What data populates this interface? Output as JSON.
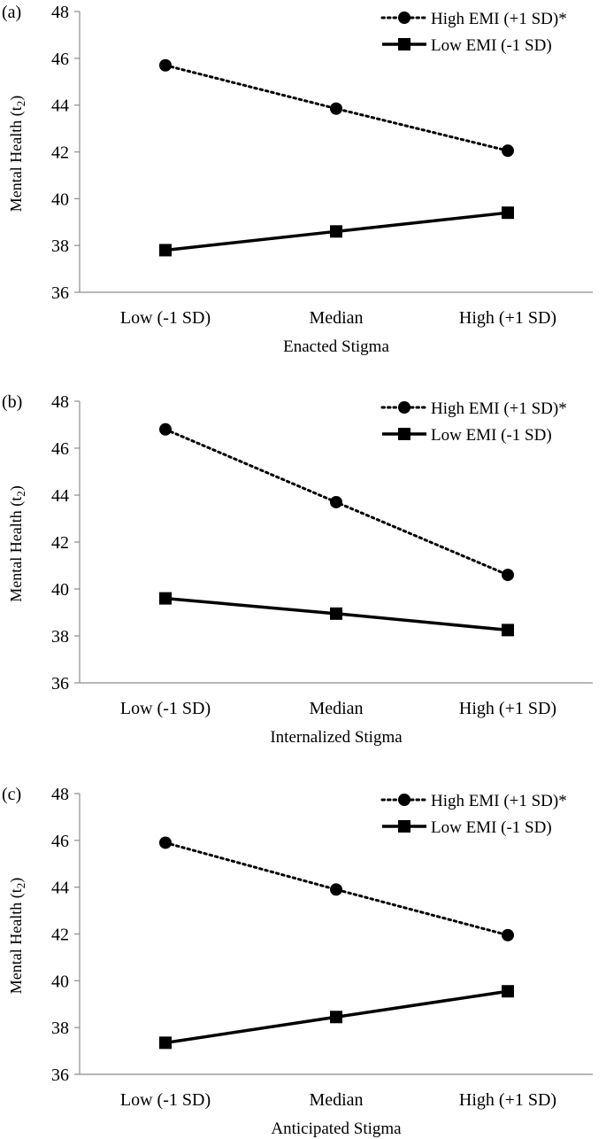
{
  "chart_data": [
    {
      "type": "line",
      "panel_label": "(a)",
      "xlabel": "Enacted Stigma",
      "ylabel": "Mental Health (t",
      "ylabel_sub": "2",
      "ylabel_close": ")",
      "categories": [
        "Low (-1 SD)",
        "Median",
        "High (+1 SD)"
      ],
      "ylim": [
        36,
        48
      ],
      "yticks": [
        36,
        38,
        40,
        42,
        44,
        46,
        48
      ],
      "legend_position": "top-right",
      "series": [
        {
          "name": "High EMI (+1 SD)*",
          "style": "dotted",
          "marker": "circle",
          "values": [
            45.7,
            43.85,
            42.05
          ]
        },
        {
          "name": "Low EMI (-1 SD)",
          "style": "solid",
          "marker": "square",
          "values": [
            37.8,
            38.6,
            39.4
          ]
        }
      ]
    },
    {
      "type": "line",
      "panel_label": "(b)",
      "xlabel": "Internalized Stigma",
      "ylabel": "Mental Health (t",
      "ylabel_sub": "2",
      "ylabel_close": ")",
      "categories": [
        "Low (-1 SD)",
        "Median",
        "High (+1 SD)"
      ],
      "ylim": [
        36,
        48
      ],
      "yticks": [
        36,
        38,
        40,
        42,
        44,
        46,
        48
      ],
      "legend_position": "top-right",
      "series": [
        {
          "name": "High EMI (+1 SD)*",
          "style": "dotted",
          "marker": "circle",
          "values": [
            46.8,
            43.7,
            40.6
          ]
        },
        {
          "name": "Low EMI (-1 SD)",
          "style": "solid",
          "marker": "square",
          "values": [
            39.6,
            38.95,
            38.25
          ]
        }
      ]
    },
    {
      "type": "line",
      "panel_label": "(c)",
      "xlabel": "Anticipated Stigma",
      "ylabel": "Mental Health (t",
      "ylabel_sub": "2",
      "ylabel_close": ")",
      "categories": [
        "Low (-1 SD)",
        "Median",
        "High (+1 SD)"
      ],
      "ylim": [
        36,
        48
      ],
      "yticks": [
        36,
        38,
        40,
        42,
        44,
        46,
        48
      ],
      "legend_position": "top-right",
      "series": [
        {
          "name": "High EMI (+1 SD)*",
          "style": "dotted",
          "marker": "circle",
          "values": [
            45.9,
            43.9,
            41.95
          ]
        },
        {
          "name": "Low EMI (-1 SD)",
          "style": "solid",
          "marker": "square",
          "values": [
            37.35,
            38.45,
            39.55
          ]
        }
      ]
    }
  ]
}
